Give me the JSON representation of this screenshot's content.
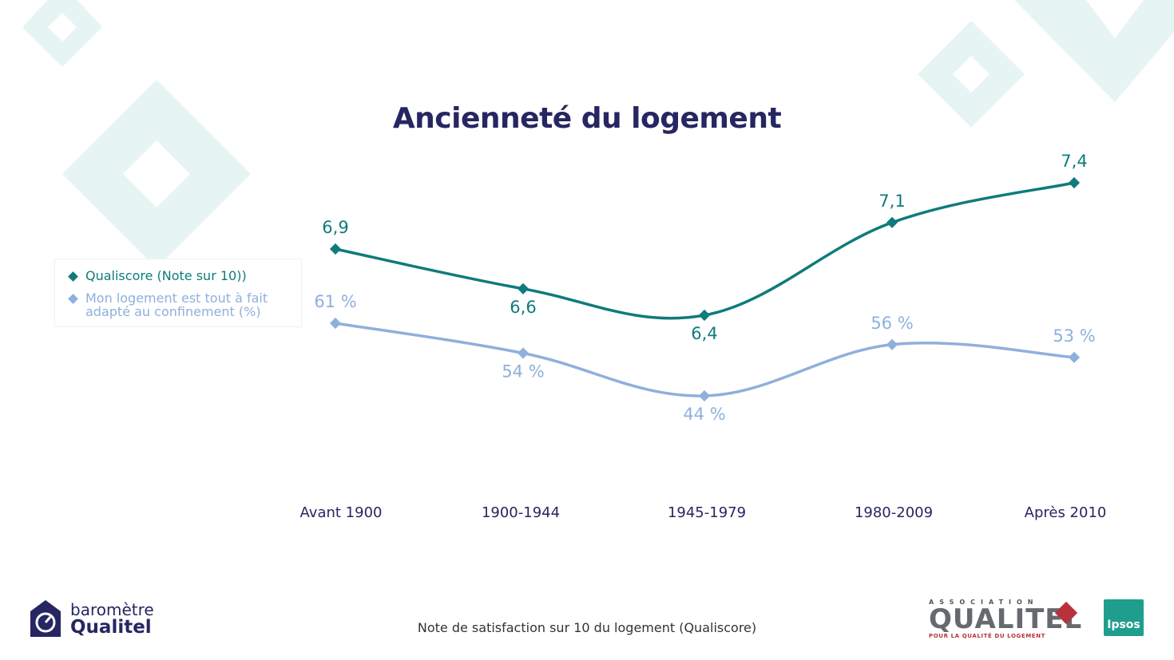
{
  "title": "Ancienneté du logement",
  "footnote": "Note de satisfaction sur 10 du logement (Qualiscore)",
  "colors": {
    "series1": "#0f7b7b",
    "series2": "#8fb0dc",
    "title": "#262662",
    "decor": "#e6f5f3"
  },
  "brand": {
    "icon": "house-gauge-icon",
    "small": "baromètre",
    "big": "Qualitel"
  },
  "qualitel": {
    "assoc": "ASSOCIATION",
    "name": "QUALITEL",
    "sub": "POUR LA QUALITÉ DU LOGEMENT"
  },
  "ipsos": {
    "name": "Ipsos"
  },
  "chart_data": {
    "type": "line",
    "title": "Ancienneté du logement",
    "categories": [
      "Avant 1900",
      "1900-1944",
      "1945-1979",
      "1980-2009",
      "Après 2010"
    ],
    "legend_position": "left",
    "grid": false,
    "series": [
      {
        "name": "Qualiscore (Note sur 10))",
        "values": [
          6.9,
          6.6,
          6.4,
          7.1,
          7.4
        ],
        "labels": [
          "6,9",
          "6,6",
          "6,4",
          "7,1",
          "7,4"
        ],
        "label_side": [
          "above",
          "below",
          "below",
          "above",
          "above"
        ]
      },
      {
        "name": "Mon logement est tout à fait adapté au confinement (%)",
        "values": [
          61,
          54,
          44,
          56,
          53
        ],
        "labels": [
          "61 %",
          "54 %",
          "44 %",
          "56 %",
          "53 %"
        ],
        "label_side": [
          "above",
          "below",
          "below",
          "above",
          "above"
        ]
      }
    ]
  }
}
